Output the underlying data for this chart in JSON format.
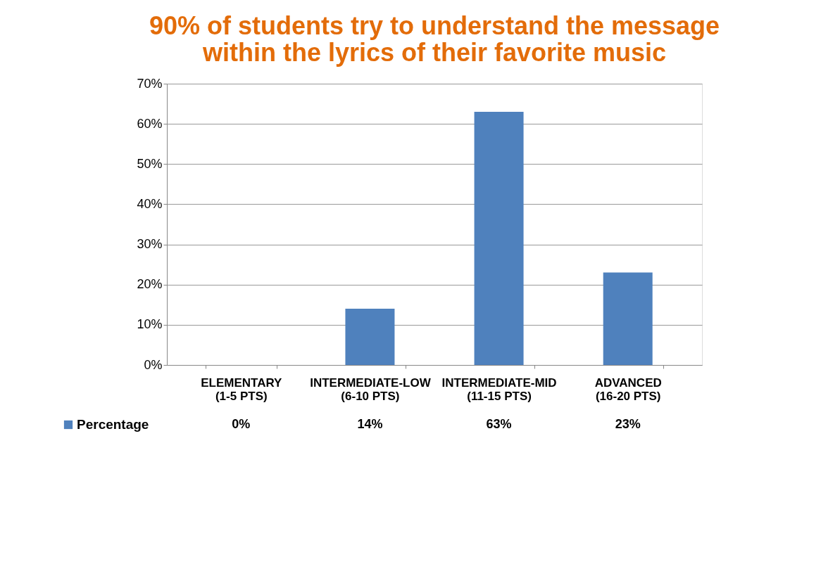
{
  "chart_data": {
    "type": "bar",
    "title": [
      "90% of students try to understand the message",
      "within the lyrics of their favorite music"
    ],
    "categories": [
      "ELEMENTARY (1-5 PTS)",
      "INTERMEDIATE-LOW (6-10 PTS)",
      "INTERMEDIATE-MID (11-15 PTS)",
      "ADVANCED (16-20 PTS)"
    ],
    "series": [
      {
        "name": "Percentage",
        "color": "#4f81bd",
        "values": [
          0,
          14,
          63,
          23
        ],
        "value_labels": [
          "0%",
          "14%",
          "63%",
          "23%"
        ]
      }
    ],
    "ylim": [
      0,
      70
    ],
    "yticks": [
      {
        "value": 0,
        "label": "0%"
      },
      {
        "value": 10,
        "label": "10%"
      },
      {
        "value": 20,
        "label": "20%"
      },
      {
        "value": 30,
        "label": "30%"
      },
      {
        "value": 40,
        "label": "40%"
      },
      {
        "value": 50,
        "label": "50%"
      },
      {
        "value": 60,
        "label": "60%"
      },
      {
        "value": 70,
        "label": "70%"
      }
    ],
    "grid": "y",
    "legend": "bottom left"
  }
}
